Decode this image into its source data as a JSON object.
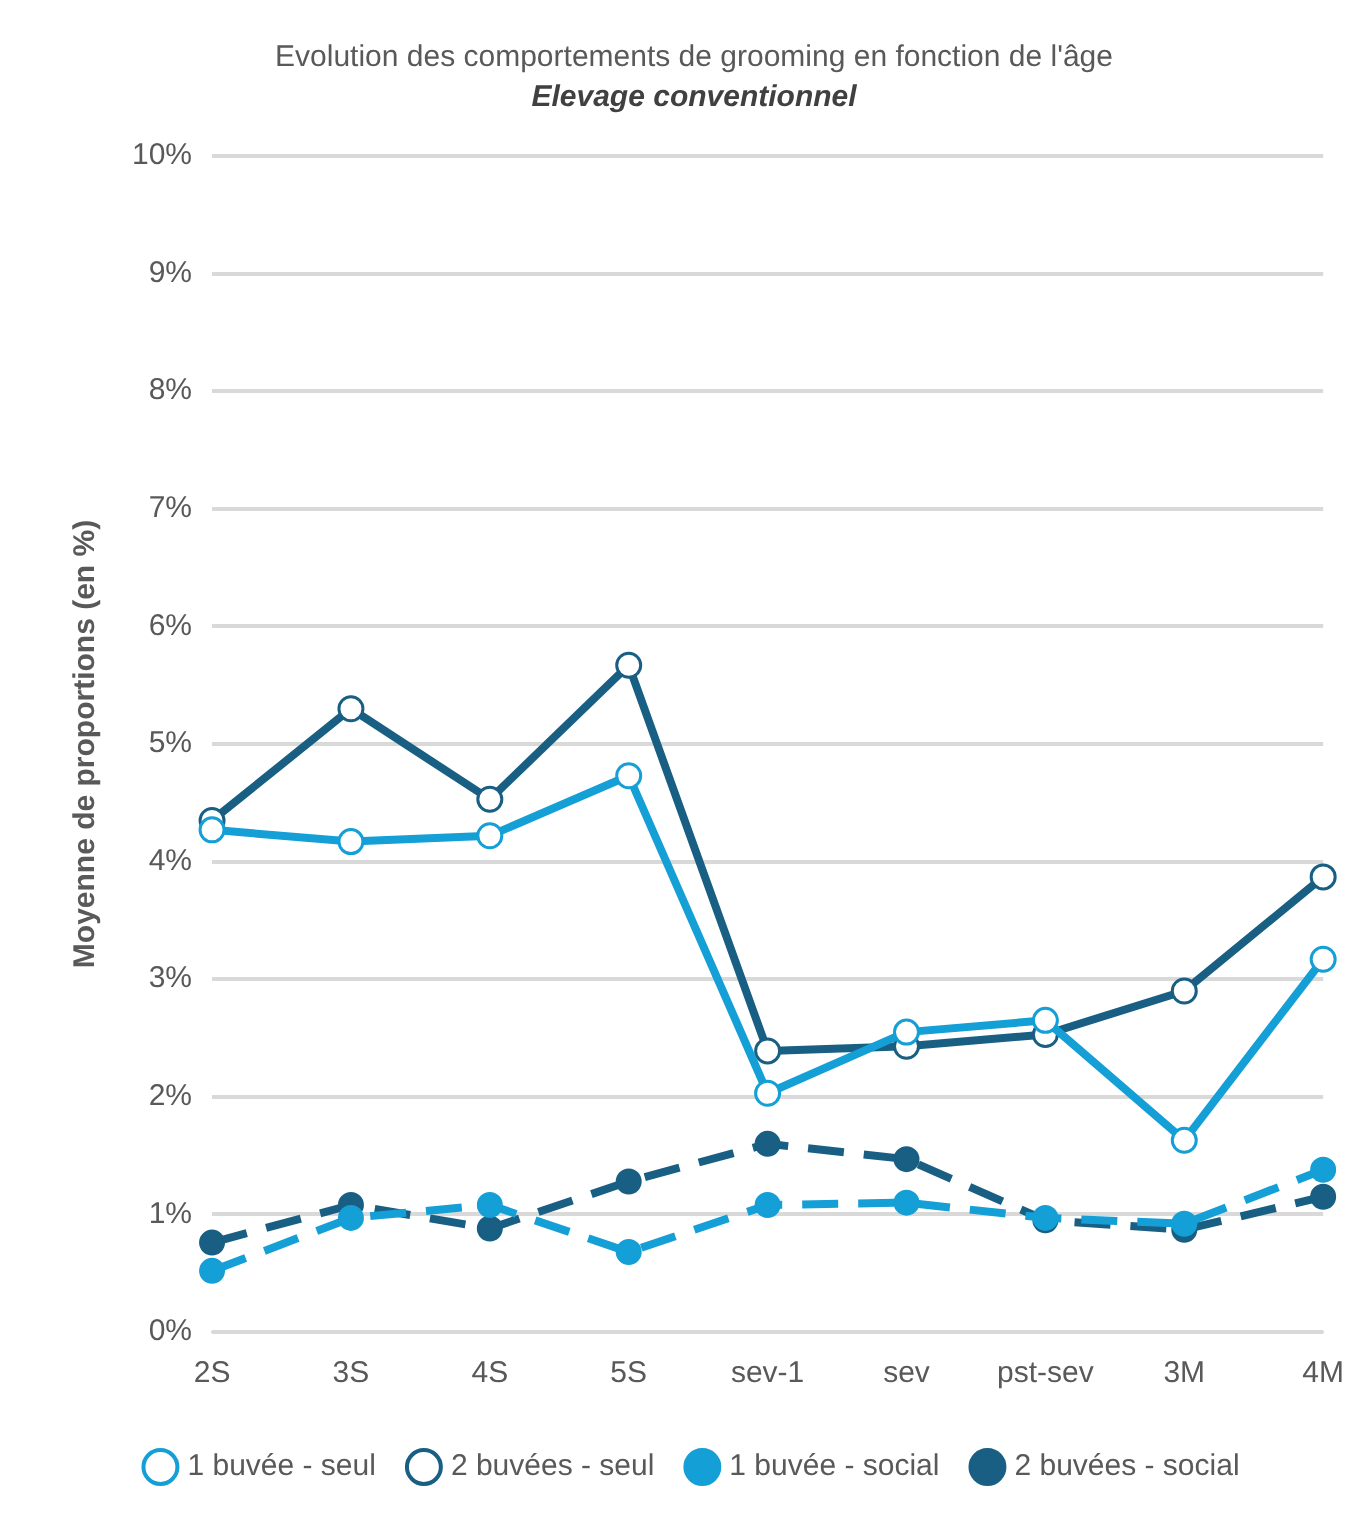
{
  "chart_data": {
    "type": "line",
    "title": "Evolution des comportements de grooming en fonction de l'âge",
    "subtitle": "Elevage conventionnel",
    "ylabel": "Moyenne de proportions (en %)",
    "categories": [
      "2S",
      "3S",
      "4S",
      "5S",
      "sev-1",
      "sev",
      "pst-sev",
      "3M",
      "4M"
    ],
    "ylim": [
      0,
      10
    ],
    "yticks": [
      {
        "value": 0,
        "label": "0%"
      },
      {
        "value": 1,
        "label": "1%"
      },
      {
        "value": 2,
        "label": "2%"
      },
      {
        "value": 3,
        "label": "3%"
      },
      {
        "value": 4,
        "label": "4%"
      },
      {
        "value": 5,
        "label": "5%"
      },
      {
        "value": 6,
        "label": "6%"
      },
      {
        "value": 7,
        "label": "7%"
      },
      {
        "value": 8,
        "label": "8%"
      },
      {
        "value": 9,
        "label": "9%"
      },
      {
        "value": 10,
        "label": "10%"
      }
    ],
    "grid": "y",
    "legend": "bottom",
    "marker": "circle",
    "series": [
      {
        "name": "1 buvée - seul",
        "color": "#149fd6",
        "line_style": "solid",
        "values": [
          4.27,
          4.17,
          4.22,
          4.73,
          2.03,
          2.55,
          2.65,
          1.63,
          3.17
        ]
      },
      {
        "name": "2 buvées - seul",
        "color": "#185f83",
        "line_style": "solid",
        "values": [
          4.35,
          5.3,
          4.53,
          5.67,
          2.39,
          2.43,
          2.53,
          2.9,
          3.87
        ]
      },
      {
        "name": "1 buvée - social",
        "color": "#149fd6",
        "line_style": "dashed",
        "values": [
          0.52,
          0.97,
          1.08,
          0.68,
          1.08,
          1.1,
          0.97,
          0.92,
          1.38
        ]
      },
      {
        "name": "2 buvées - social",
        "color": "#185f83",
        "line_style": "dashed",
        "values": [
          0.76,
          1.08,
          0.88,
          1.28,
          1.6,
          1.47,
          0.95,
          0.87,
          1.15
        ]
      }
    ]
  }
}
